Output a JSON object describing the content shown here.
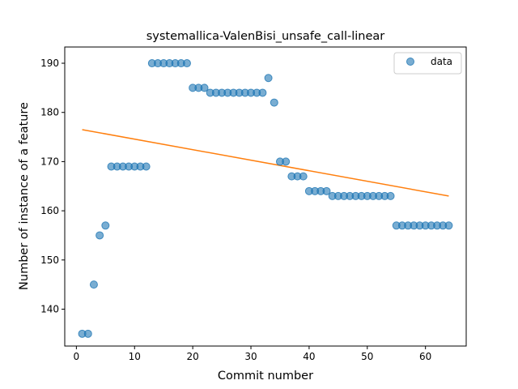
{
  "chart_data": {
    "type": "scatter",
    "title": "systemallica-ValenBisi_unsafe_call-linear",
    "xlabel": "Commit number",
    "ylabel": "Number of instance of a feature",
    "xlim": [
      -2,
      67
    ],
    "ylim": [
      132.5,
      193.3
    ],
    "xticks": [
      0,
      10,
      20,
      30,
      40,
      50,
      60
    ],
    "yticks": [
      140,
      150,
      160,
      170,
      180,
      190
    ],
    "legend_position": "upper-right",
    "series": [
      {
        "name": "data",
        "kind": "scatter",
        "color": "#1f77b4",
        "x": [
          1,
          2,
          3,
          4,
          5,
          6,
          7,
          8,
          9,
          10,
          11,
          12,
          13,
          14,
          15,
          16,
          17,
          18,
          19,
          20,
          21,
          22,
          23,
          24,
          25,
          26,
          27,
          28,
          29,
          30,
          31,
          32,
          33,
          34,
          35,
          36,
          37,
          38,
          39,
          40,
          41,
          42,
          43,
          44,
          45,
          46,
          47,
          48,
          49,
          50,
          51,
          52,
          53,
          54,
          55,
          56,
          57,
          58,
          59,
          60,
          61,
          62,
          63,
          64
        ],
        "y": [
          135,
          135,
          145,
          155,
          157,
          169,
          169,
          169,
          169,
          169,
          169,
          169,
          190,
          190,
          190,
          190,
          190,
          190,
          190,
          185,
          185,
          185,
          184,
          184,
          184,
          184,
          184,
          184,
          184,
          184,
          184,
          184,
          187,
          182,
          170,
          170,
          167,
          167,
          167,
          164,
          164,
          164,
          164,
          163,
          163,
          163,
          163,
          163,
          163,
          163,
          163,
          163,
          163,
          163,
          157,
          157,
          157,
          157,
          157,
          157,
          157,
          157,
          157,
          157
        ]
      },
      {
        "name": "",
        "kind": "line",
        "color": "#ff7f0e",
        "x": [
          1,
          64
        ],
        "y": [
          176.5,
          163.0
        ]
      }
    ]
  }
}
